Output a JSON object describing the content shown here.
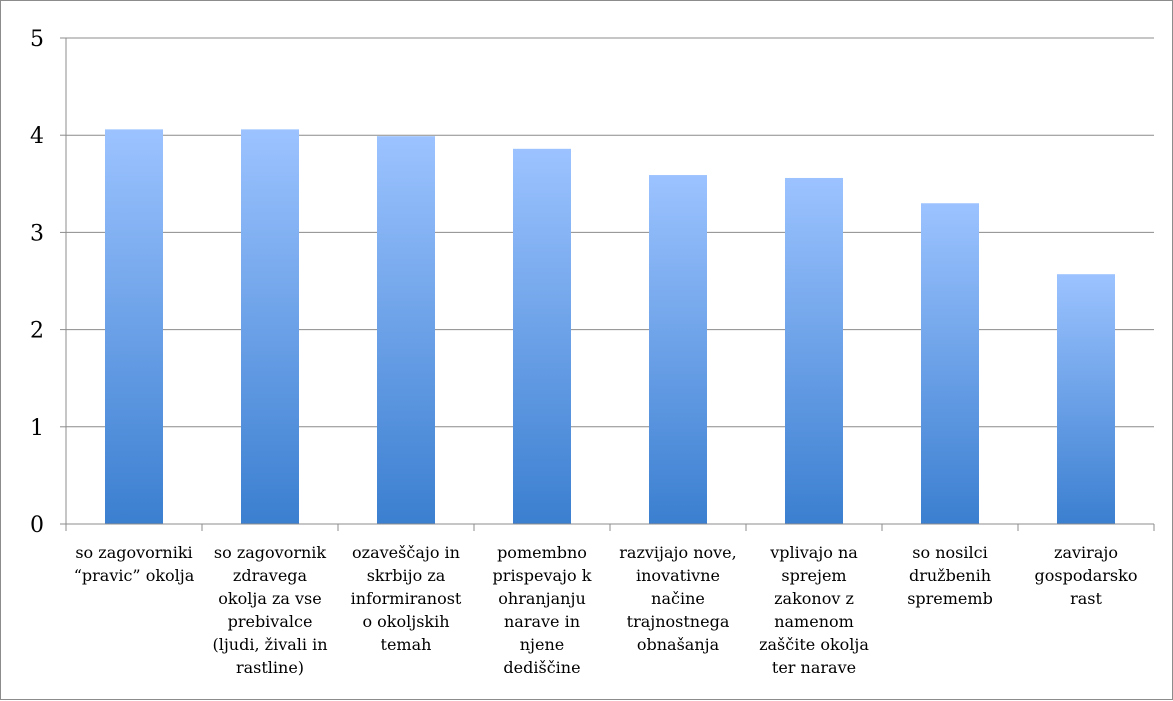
{
  "chart_data": {
    "type": "bar",
    "title": "",
    "xlabel": "",
    "ylabel": "",
    "ylim": [
      0,
      5
    ],
    "yticks": [
      0,
      1,
      2,
      3,
      4,
      5
    ],
    "grid": true,
    "legend": "none",
    "bar_color_top": "#9cc3ff",
    "bar_color_bottom": "#3b7fd0",
    "categories": [
      [
        "so zagovorniki",
        "“pravic” okolja"
      ],
      [
        "so zagovornik",
        "zdravega",
        "okolja za vse",
        "prebivalce",
        "(ljudi, živali in",
        "rastline)"
      ],
      [
        "ozaveščajo in",
        "skrbijo za",
        "informiranost",
        "o okoljskih",
        "temah"
      ],
      [
        "pomembno",
        "prispevajo k",
        "ohranjanju",
        "narave in",
        "njene",
        "dediščine"
      ],
      [
        "razvijajo nove,",
        "inovativne",
        "načine",
        "trajnostnega",
        "obnašanja"
      ],
      [
        "vplivajo na",
        "sprejem",
        "zakonov z",
        "namenom",
        "zaščite okolja",
        "ter narave"
      ],
      [
        "so nosilci",
        "družbenih",
        "sprememb"
      ],
      [
        "zavirajo",
        "gospodarsko",
        "rast"
      ]
    ],
    "values": [
      4.06,
      4.06,
      3.99,
      3.86,
      3.59,
      3.56,
      3.3,
      2.57
    ]
  }
}
